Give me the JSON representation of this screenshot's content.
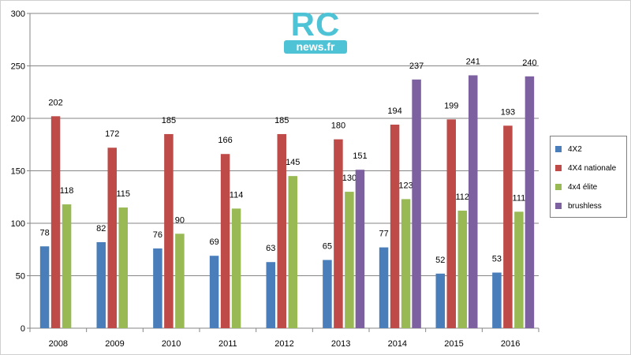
{
  "colors": {
    "4X2": "#4a7ebb",
    "4X4 nationale": "#be4b48",
    "4x4 élite": "#98b954",
    "brushless": "#7d60a0",
    "gridline": "#868686",
    "axis": "#868686"
  },
  "logo": {
    "brand": "RC",
    "site": "news.fr",
    "color": "#4fc3d6"
  },
  "chart_data": {
    "type": "bar",
    "title": "",
    "xlabel": "",
    "ylabel": "",
    "ylim": [
      0,
      300
    ],
    "yticks": [
      "0",
      "50",
      "100",
      "150",
      "200",
      "250",
      "300"
    ],
    "grid": true,
    "legend_position": "right",
    "categories": [
      "2008",
      "2009",
      "2010",
      "2011",
      "2012",
      "2013",
      "2014",
      "2015",
      "2016"
    ],
    "series": [
      {
        "name": "4X2",
        "values": [
          78,
          82,
          76,
          69,
          63,
          65,
          77,
          52,
          53
        ],
        "labels": [
          "78",
          "82",
          "76",
          "69",
          "63",
          "65",
          "77",
          "52",
          "53"
        ]
      },
      {
        "name": "4X4 nationale",
        "values": [
          202,
          172,
          185,
          166,
          185,
          180,
          194,
          199,
          193
        ],
        "labels": [
          "202",
          "172",
          "185",
          "166",
          "185",
          "180",
          "194",
          "199",
          "193"
        ]
      },
      {
        "name": "4x4 élite",
        "values": [
          118,
          115,
          90,
          114,
          145,
          130,
          123,
          112,
          111
        ],
        "labels": [
          "118",
          "115",
          "90",
          "114",
          "145",
          "130",
          "123",
          "112",
          "111"
        ]
      },
      {
        "name": "brushless",
        "values": [
          null,
          null,
          null,
          null,
          null,
          151,
          237,
          241,
          240
        ],
        "labels": [
          "",
          "",
          "",
          "",
          "",
          "151",
          "237",
          "241",
          "240"
        ]
      }
    ]
  }
}
